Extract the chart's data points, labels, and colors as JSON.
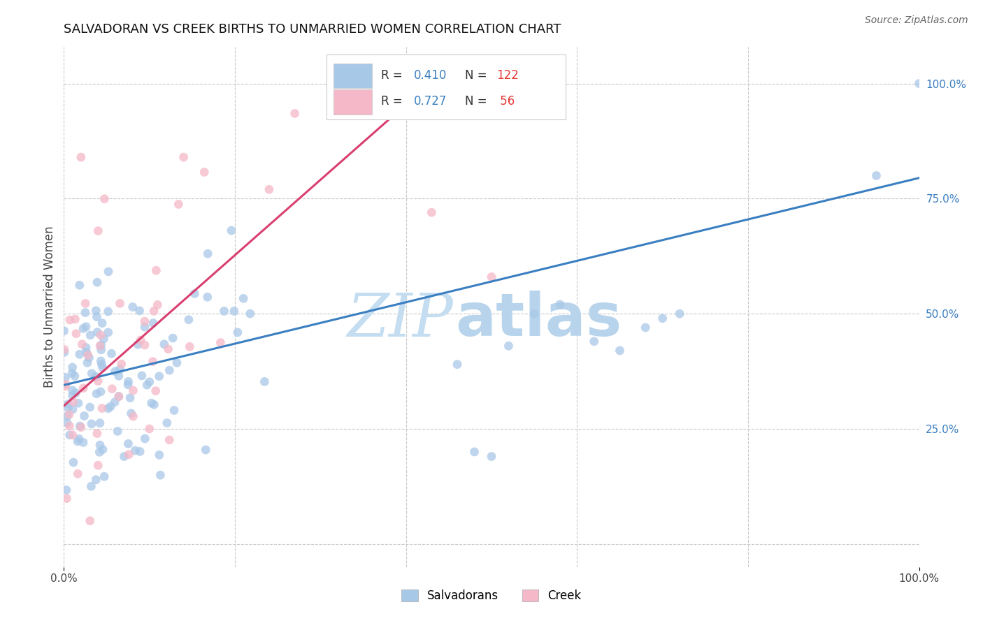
{
  "title": "SALVADORAN VS CREEK BIRTHS TO UNMARRIED WOMEN CORRELATION CHART",
  "source": "Source: ZipAtlas.com",
  "ylabel": "Births to Unmarried Women",
  "salvadoran_R": 0.41,
  "salvadoran_N": 122,
  "creek_R": 0.727,
  "creek_N": 56,
  "blue_color": "#a8c8e8",
  "pink_color": "#f4b8c8",
  "blue_line_color": "#3a7fc1",
  "pink_line_color": "#d94070",
  "background_color": "#ffffff",
  "grid_color": "#c8c8c8",
  "xlim": [
    0.0,
    1.0
  ],
  "ylim": [
    -0.05,
    1.08
  ],
  "blue_trend_x0": 0.0,
  "blue_trend_y0": 0.345,
  "blue_trend_x1": 1.0,
  "blue_trend_y1": 0.795,
  "pink_trend_x0": 0.0,
  "pink_trend_y0": 0.3,
  "pink_trend_x1": 0.44,
  "pink_trend_y1": 1.02,
  "legend_salvadorans": "Salvadorans",
  "legend_creek": "Creek"
}
